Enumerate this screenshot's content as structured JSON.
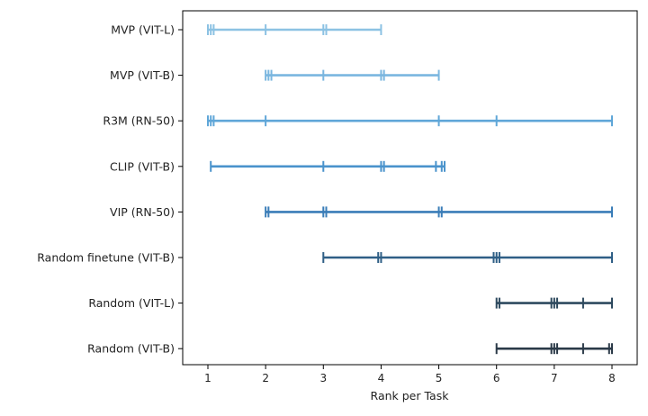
{
  "chart_data": {
    "type": "line",
    "title": "",
    "xlabel": "Rank per Task",
    "ylabel": "",
    "xlim": [
      0.5,
      8.4
    ],
    "xticks": [
      "1",
      "2",
      "3",
      "4",
      "5",
      "6",
      "7",
      "8"
    ],
    "grid": false,
    "legend": "none",
    "series": [
      {
        "name": "MVP (VIT-L)",
        "ranks": [
          1,
          1.05,
          1.1,
          2,
          3,
          3.05,
          4
        ],
        "color": "#8cc2e3"
      },
      {
        "name": "MVP (VIT-B)",
        "ranks": [
          2,
          2.05,
          2.1,
          3,
          4,
          4.05,
          5
        ],
        "color": "#7ab6df"
      },
      {
        "name": "R3M (RN-50)",
        "ranks": [
          1,
          1.05,
          1.1,
          2,
          5,
          6,
          8
        ],
        "color": "#5fa6d8"
      },
      {
        "name": "CLIP (VIT-B)",
        "ranks": [
          1.05,
          3,
          4,
          4.05,
          4.95,
          5.05,
          5.1
        ],
        "color": "#4a93cc"
      },
      {
        "name": "VIP (RN-50)",
        "ranks": [
          2,
          2.05,
          3,
          3.05,
          5,
          5.05,
          8
        ],
        "color": "#3a7db8"
      },
      {
        "name": "Random finetune (VIT-B)",
        "ranks": [
          3,
          3.95,
          4,
          5.95,
          6,
          6.05,
          8
        ],
        "color": "#2f5f86"
      },
      {
        "name": "Random (VIT-L)",
        "ranks": [
          6,
          6.05,
          6.95,
          7,
          7.05,
          7.5,
          8
        ],
        "color": "#2e4a5f"
      },
      {
        "name": "Random (VIT-B)",
        "ranks": [
          6,
          6.95,
          7,
          7.05,
          7.5,
          7.95,
          8
        ],
        "color": "#2b3a48"
      }
    ]
  }
}
